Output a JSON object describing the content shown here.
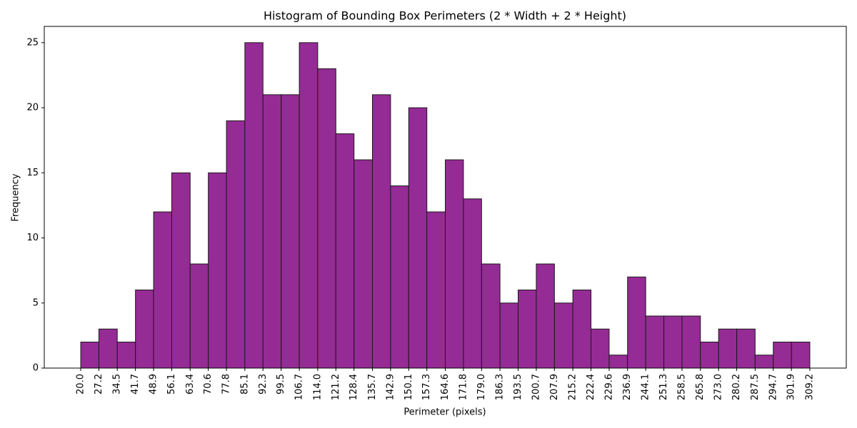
{
  "chart_data": {
    "type": "histogram",
    "title": "Histogram of Bounding Box Perimeters (2 * Width + 2 * Height)",
    "x_label": "Perimeter (pixels)",
    "y_label": "Frequency",
    "bins": [
      20.0,
      27.2,
      34.5,
      41.7,
      48.9,
      56.1,
      63.4,
      70.6,
      77.8,
      85.1,
      92.3,
      99.5,
      106.7,
      114.0,
      121.2,
      128.4,
      135.7,
      142.9,
      150.1,
      157.3,
      164.6,
      171.8,
      179.0,
      186.3,
      193.5,
      200.7,
      207.9,
      215.2,
      222.4,
      229.6,
      236.9,
      244.1,
      251.3,
      258.5,
      265.8,
      273.0,
      280.2,
      287.5,
      294.7,
      301.9,
      309.2
    ],
    "values": [
      2,
      3,
      2,
      6,
      12,
      15,
      8,
      15,
      19,
      25,
      21,
      21,
      25,
      23,
      18,
      16,
      21,
      14,
      20,
      12,
      16,
      13,
      8,
      5,
      6,
      8,
      5,
      6,
      3,
      1,
      7,
      4,
      4,
      4,
      2,
      3,
      3,
      1,
      2,
      2
    ],
    "color": "#952b95",
    "edge_color": "#1a1a1a",
    "xlim": [
      5.54,
      323.66
    ],
    "ylim": [
      0,
      26.25
    ],
    "xticks": [
      {
        "value": 20.0,
        "label": "20.0"
      },
      {
        "value": 27.2,
        "label": "27.2"
      },
      {
        "value": 34.5,
        "label": "34.5"
      },
      {
        "value": 41.7,
        "label": "41.7"
      },
      {
        "value": 48.9,
        "label": "48.9"
      },
      {
        "value": 56.1,
        "label": "56.1"
      },
      {
        "value": 63.4,
        "label": "63.4"
      },
      {
        "value": 70.6,
        "label": "70.6"
      },
      {
        "value": 77.8,
        "label": "77.8"
      },
      {
        "value": 85.1,
        "label": "85.1"
      },
      {
        "value": 92.3,
        "label": "92.3"
      },
      {
        "value": 99.5,
        "label": "99.5"
      },
      {
        "value": 106.7,
        "label": "106.7"
      },
      {
        "value": 114.0,
        "label": "114.0"
      },
      {
        "value": 121.2,
        "label": "121.2"
      },
      {
        "value": 128.4,
        "label": "128.4"
      },
      {
        "value": 135.7,
        "label": "135.7"
      },
      {
        "value": 142.9,
        "label": "142.9"
      },
      {
        "value": 150.1,
        "label": "150.1"
      },
      {
        "value": 157.3,
        "label": "157.3"
      },
      {
        "value": 164.6,
        "label": "164.6"
      },
      {
        "value": 171.8,
        "label": "171.8"
      },
      {
        "value": 179.0,
        "label": "179.0"
      },
      {
        "value": 186.3,
        "label": "186.3"
      },
      {
        "value": 193.5,
        "label": "193.5"
      },
      {
        "value": 200.7,
        "label": "200.7"
      },
      {
        "value": 207.9,
        "label": "207.9"
      },
      {
        "value": 215.2,
        "label": "215.2"
      },
      {
        "value": 222.4,
        "label": "222.4"
      },
      {
        "value": 229.6,
        "label": "229.6"
      },
      {
        "value": 236.9,
        "label": "236.9"
      },
      {
        "value": 244.1,
        "label": "244.1"
      },
      {
        "value": 251.3,
        "label": "251.3"
      },
      {
        "value": 258.5,
        "label": "258.5"
      },
      {
        "value": 265.8,
        "label": "265.8"
      },
      {
        "value": 273.0,
        "label": "273.0"
      },
      {
        "value": 280.2,
        "label": "280.2"
      },
      {
        "value": 287.5,
        "label": "287.5"
      },
      {
        "value": 294.7,
        "label": "294.7"
      },
      {
        "value": 301.9,
        "label": "301.9"
      },
      {
        "value": 309.2,
        "label": "309.2"
      }
    ],
    "yticks": [
      0,
      5,
      10,
      15,
      20,
      25
    ]
  }
}
